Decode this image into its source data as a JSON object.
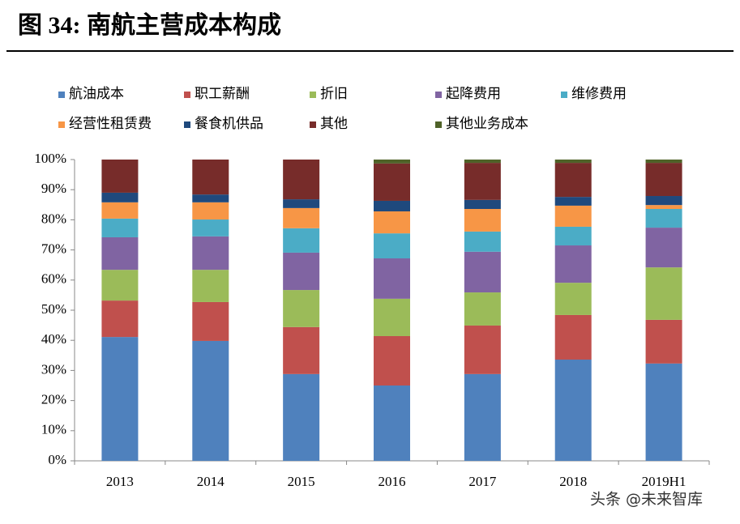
{
  "chart_data": {
    "type": "stacked_bar",
    "title": "图 34:  南航主营成本构成",
    "watermark": "头条 @未来智库",
    "categories": [
      "2013",
      "2014",
      "2015",
      "2016",
      "2017",
      "2018",
      "2019H1"
    ],
    "series": [
      {
        "name": "航油成本",
        "color": "#4f81bd",
        "values": [
          41.1,
          39.8,
          28.8,
          25.0,
          28.8,
          33.6,
          32.3
        ]
      },
      {
        "name": "职工薪酬",
        "color": "#c0504d",
        "values": [
          12.1,
          12.9,
          15.6,
          16.4,
          16.1,
          14.8,
          14.5
        ]
      },
      {
        "name": "折旧",
        "color": "#9bbb59",
        "values": [
          10.2,
          10.7,
          12.3,
          12.4,
          11.0,
          10.7,
          17.4
        ]
      },
      {
        "name": "起降费用",
        "color": "#8064a2",
        "values": [
          10.8,
          11.1,
          12.4,
          13.4,
          13.5,
          12.4,
          13.2
        ]
      },
      {
        "name": "维修费用",
        "color": "#4bacc6",
        "values": [
          6.2,
          5.6,
          8.1,
          8.3,
          6.7,
          6.2,
          6.2
        ]
      },
      {
        "name": "经营性租赁费",
        "color": "#f79646",
        "values": [
          5.4,
          5.7,
          6.7,
          7.3,
          7.5,
          7.0,
          1.3
        ]
      },
      {
        "name": "餐食机供品",
        "color": "#1f497d",
        "values": [
          3.2,
          2.6,
          2.9,
          3.5,
          3.0,
          2.9,
          3.0
        ]
      },
      {
        "name": "其他",
        "color": "#772c2a",
        "values": [
          11.0,
          11.6,
          13.2,
          12.4,
          12.3,
          11.3,
          11.0
        ]
      },
      {
        "name": "其他业务成本",
        "color": "#4f6228",
        "values": [
          0,
          0,
          0,
          1.3,
          1.1,
          1.1,
          1.1
        ]
      }
    ],
    "ylim": [
      0,
      100
    ],
    "yticks": [
      {
        "value": 0,
        "label": "0%"
      },
      {
        "value": 10,
        "label": "10%"
      },
      {
        "value": 20,
        "label": "20%"
      },
      {
        "value": 30,
        "label": "30%"
      },
      {
        "value": 40,
        "label": "40%"
      },
      {
        "value": 50,
        "label": "50%"
      },
      {
        "value": 60,
        "label": "60%"
      },
      {
        "value": 70,
        "label": "70%"
      },
      {
        "value": 80,
        "label": "80%"
      },
      {
        "value": 90,
        "label": "90%"
      },
      {
        "value": 100,
        "label": "100%"
      }
    ]
  }
}
